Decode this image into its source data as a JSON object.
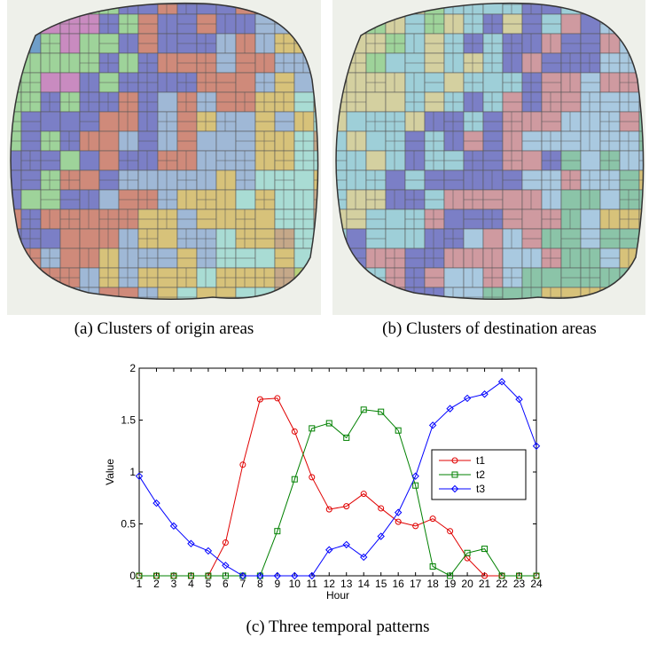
{
  "captions": {
    "a": "(a) Clusters of origin areas",
    "b": "(b) Clusters of destination areas",
    "c": "(c) Three temporal patterns"
  },
  "chart_data": {
    "type": "line",
    "xlabel": "Hour",
    "ylabel": "Value",
    "x": [
      1,
      2,
      3,
      4,
      5,
      6,
      7,
      8,
      9,
      10,
      11,
      12,
      13,
      14,
      15,
      16,
      17,
      18,
      19,
      20,
      21,
      22,
      23,
      24
    ],
    "xlim": [
      1,
      24
    ],
    "xticks": [
      1,
      2,
      3,
      4,
      5,
      6,
      7,
      8,
      9,
      10,
      11,
      12,
      13,
      14,
      15,
      16,
      17,
      18,
      19,
      20,
      21,
      22,
      23,
      24
    ],
    "ylim": [
      0,
      2
    ],
    "yticks": [
      0,
      0.5,
      1,
      1.5,
      2
    ],
    "legend": "right",
    "series": [
      {
        "name": "t1",
        "color": "#e00000",
        "marker": "circle",
        "values": [
          0,
          0,
          0,
          0,
          0,
          0.32,
          1.07,
          1.7,
          1.71,
          1.39,
          0.95,
          0.64,
          0.67,
          0.79,
          0.65,
          0.52,
          0.48,
          0.55,
          0.43,
          0.17,
          0,
          0,
          0,
          0
        ]
      },
      {
        "name": "t2",
        "color": "#008000",
        "marker": "square",
        "values": [
          0,
          0,
          0,
          0,
          0,
          0,
          0,
          0,
          0.43,
          0.93,
          1.42,
          1.47,
          1.33,
          1.6,
          1.58,
          1.4,
          0.87,
          0.09,
          0,
          0.22,
          0.26,
          0,
          0,
          0
        ]
      },
      {
        "name": "t3",
        "color": "#0000ff",
        "marker": "diamond",
        "values": [
          0.96,
          0.7,
          0.48,
          0.31,
          0.24,
          0.1,
          0,
          0,
          0,
          0,
          0,
          0.25,
          0.3,
          0.18,
          0.38,
          0.61,
          0.96,
          1.45,
          1.61,
          1.71,
          1.75,
          1.87,
          1.7,
          1.25
        ]
      }
    ]
  }
}
